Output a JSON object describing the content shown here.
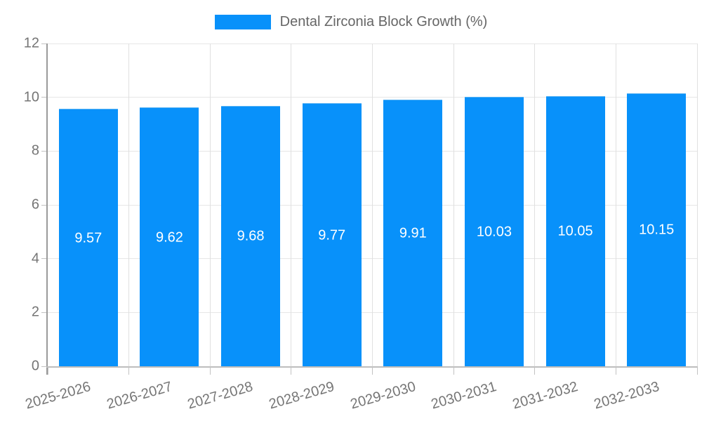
{
  "chart_data": {
    "type": "bar",
    "title": "Dental Zirconia Block Growth (%)",
    "legend": {
      "position": "top",
      "entries": [
        "Dental Zirconia Block Growth (%)"
      ]
    },
    "categories": [
      "2025-2026",
      "2026-2027",
      "2027-2028",
      "2028-2029",
      "2029-2030",
      "2030-2031",
      "2031-2032",
      "2032-2033"
    ],
    "values": [
      9.57,
      9.62,
      9.68,
      9.77,
      9.91,
      10.03,
      10.05,
      10.15
    ],
    "value_labels": [
      "9.57",
      "9.62",
      "9.68",
      "9.77",
      "9.91",
      "10.03",
      "10.05",
      "10.15"
    ],
    "xlabel": "",
    "ylabel": "",
    "ylim": [
      0,
      12
    ],
    "yticks": [
      0,
      2,
      4,
      6,
      8,
      10,
      12
    ],
    "grid": true,
    "colors": {
      "bar": "#0891fa",
      "bar_top_edge": "#57b2f3",
      "grid_h": "#e6e6e6",
      "grid_v": "#e0e0e0",
      "axis_y": "#9a9a9a",
      "axis_x": "#bdbdbd",
      "tick": "#c2c2c2",
      "tick_label": "#757575",
      "title": "#666666",
      "value_label": "#ffffff",
      "background": "#ffffff"
    }
  }
}
